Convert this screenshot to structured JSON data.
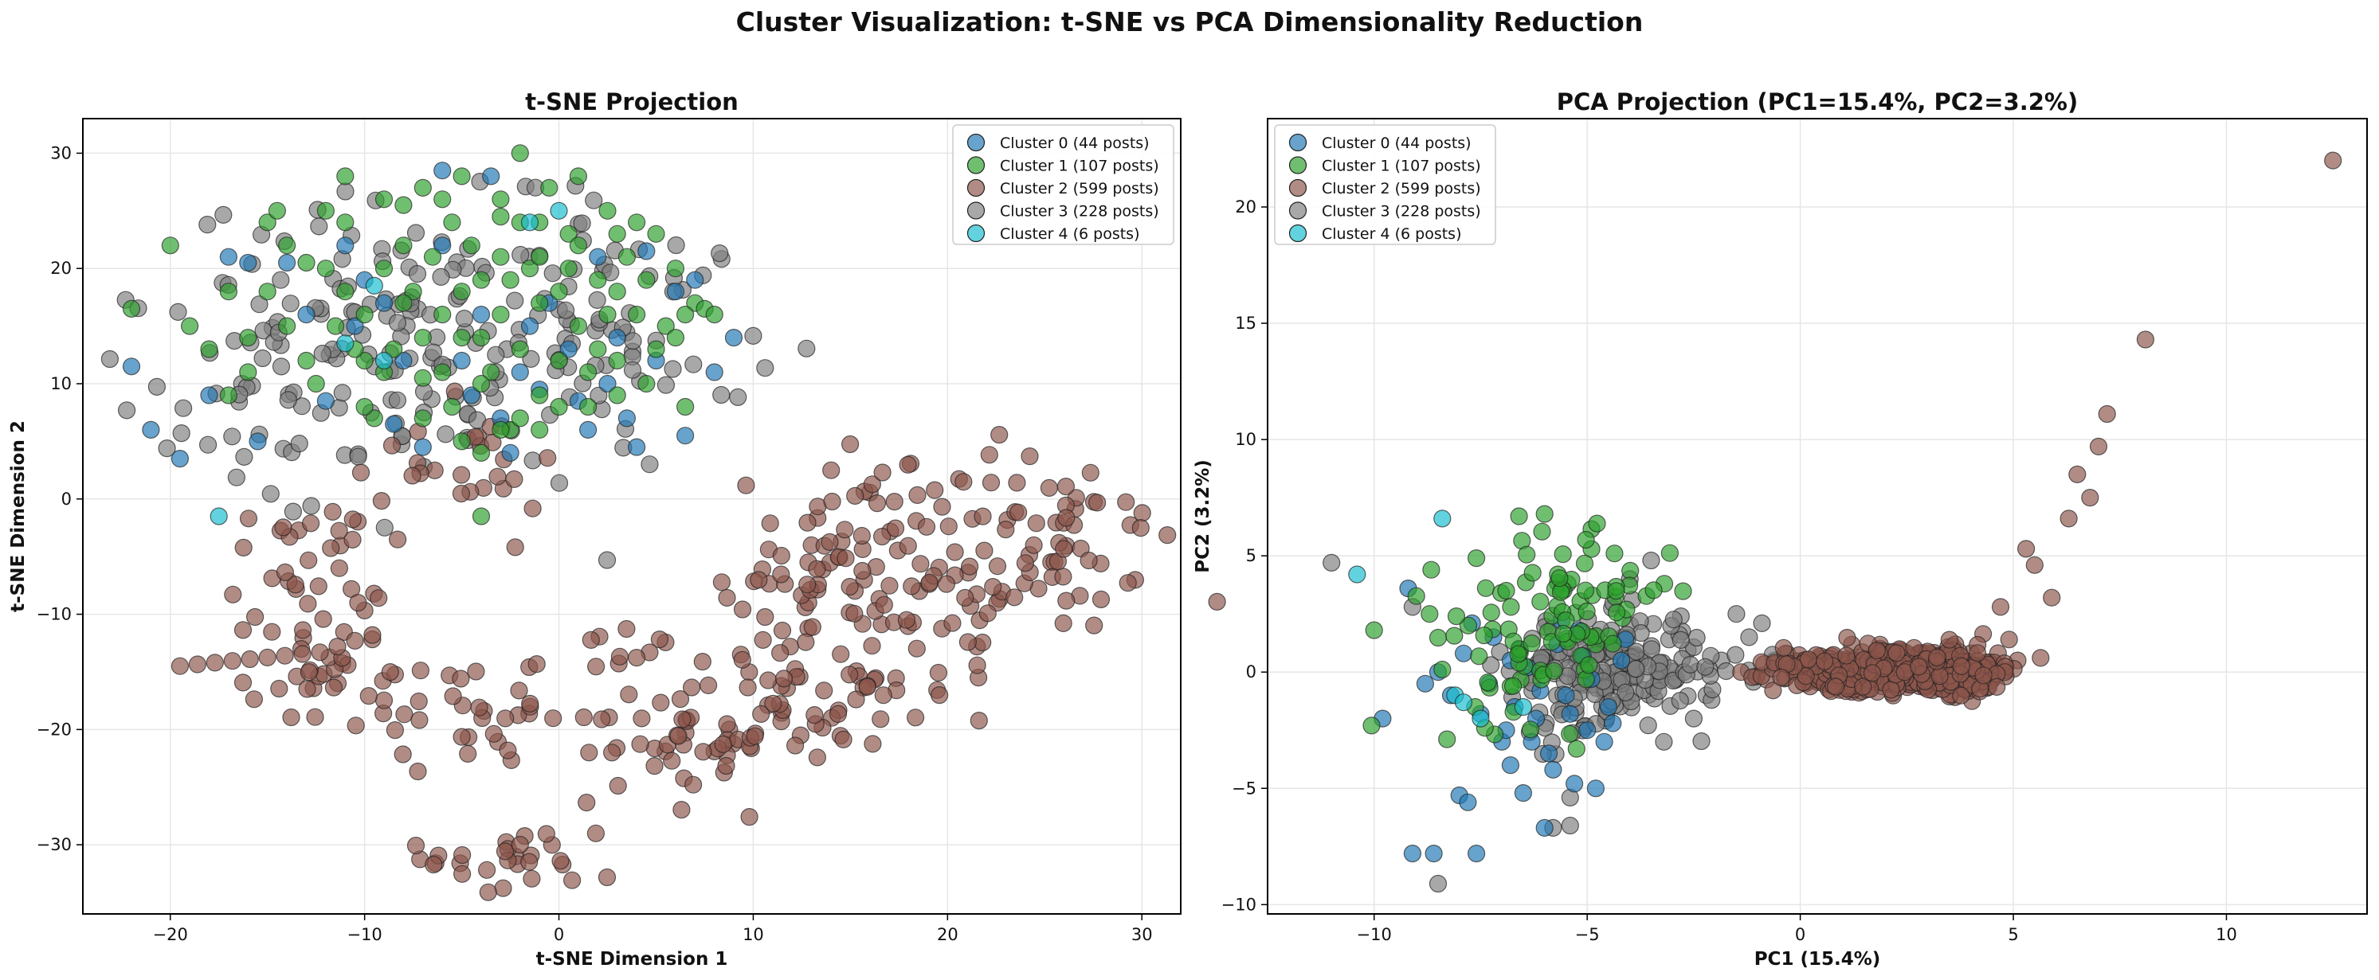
{
  "figure": {
    "title": "Cluster Visualization: t-SNE vs PCA Dimensionality Reduction"
  },
  "colors": {
    "cluster0": "#1f77b4",
    "cluster1": "#2ca02c",
    "cluster2": "#8c564b",
    "cluster3": "#7f7f7f",
    "cluster4": "#17becf",
    "grid": "#e6e6e6",
    "marker_edge": "#222222"
  },
  "chart_data": [
    {
      "type": "scatter",
      "title": "t-SNE Projection",
      "xlabel": "t-SNE Dimension 1",
      "ylabel": "t-SNE Dimension 2",
      "xlim": [
        -24.5,
        32
      ],
      "ylim": [
        -36,
        33
      ],
      "xticks": [
        -20,
        -10,
        0,
        10,
        20,
        30
      ],
      "yticks": [
        -30,
        -20,
        -10,
        0,
        10,
        20,
        30
      ],
      "grid": true,
      "legend_position": "top-right",
      "series": [
        {
          "name": "Cluster 0 (44 posts)",
          "color_key": "cluster0",
          "points": [
            [
              -22,
              11.5
            ],
            [
              -21,
              6
            ],
            [
              -19.5,
              3.5
            ],
            [
              -18,
              9
            ],
            [
              -17,
              21
            ],
            [
              -16,
              20.5
            ],
            [
              -15.5,
              5
            ],
            [
              -14,
              20.5
            ],
            [
              -13,
              16
            ],
            [
              -12,
              8.5
            ],
            [
              -11,
              22
            ],
            [
              -10.5,
              15
            ],
            [
              -10,
              19
            ],
            [
              -9,
              17
            ],
            [
              -8,
              12
            ],
            [
              -7,
              4.5
            ],
            [
              -6,
              28.5
            ],
            [
              -6,
              22
            ],
            [
              -5,
              12
            ],
            [
              -4.5,
              9
            ],
            [
              -4,
              16
            ],
            [
              -3.5,
              28
            ],
            [
              -3,
              7
            ],
            [
              -2.5,
              4
            ],
            [
              -2,
              11
            ],
            [
              -1.5,
              15
            ],
            [
              -1,
              9.5
            ],
            [
              -0.5,
              17
            ],
            [
              0.5,
              13
            ],
            [
              1,
              8.5
            ],
            [
              1.5,
              6
            ],
            [
              2,
              21
            ],
            [
              2.5,
              10
            ],
            [
              3,
              14
            ],
            [
              3.5,
              7
            ],
            [
              4,
              4.5
            ],
            [
              4.5,
              21.5
            ],
            [
              5,
              12
            ],
            [
              6,
              18
            ],
            [
              6.5,
              5.5
            ],
            [
              7,
              19
            ],
            [
              8,
              11
            ],
            [
              9,
              14
            ],
            [
              -8.5,
              6.5
            ]
          ]
        },
        {
          "name": "Cluster 1 (107 posts)",
          "color_key": "cluster1",
          "points": [
            [
              -22,
              16.5
            ],
            [
              -20,
              22
            ],
            [
              -19,
              15
            ],
            [
              -18,
              13
            ],
            [
              -17,
              18
            ],
            [
              -16,
              11
            ],
            [
              -15,
              24
            ],
            [
              -14.5,
              25
            ],
            [
              -14,
              15
            ],
            [
              -13,
              20.5
            ],
            [
              -12.5,
              10
            ],
            [
              -11.5,
              15
            ],
            [
              -11,
              24
            ],
            [
              -11,
              28
            ],
            [
              -10,
              12
            ],
            [
              -9.5,
              7
            ],
            [
              -9,
              20
            ],
            [
              -8.5,
              13
            ],
            [
              -8,
              25.5
            ],
            [
              -7.5,
              18
            ],
            [
              -7,
              10.5
            ],
            [
              -7,
              27
            ],
            [
              -6.5,
              21
            ],
            [
              -6,
              16
            ],
            [
              -5.5,
              8
            ],
            [
              -5,
              28
            ],
            [
              -5,
              14
            ],
            [
              -4.5,
              22
            ],
            [
              -4,
              4
            ],
            [
              -4,
              19
            ],
            [
              -3.5,
              11
            ],
            [
              -3,
              26
            ],
            [
              -3,
              16
            ],
            [
              -2.5,
              6
            ],
            [
              -2,
              30
            ],
            [
              -2,
              13
            ],
            [
              -1.5,
              20
            ],
            [
              -1,
              24
            ],
            [
              -1,
              9
            ],
            [
              -0.5,
              27
            ],
            [
              0,
              18
            ],
            [
              0,
              12
            ],
            [
              0.5,
              23
            ],
            [
              1,
              15
            ],
            [
              1.5,
              8
            ],
            [
              2,
              19
            ],
            [
              2.5,
              25
            ],
            [
              3,
              12
            ],
            [
              3.5,
              21
            ],
            [
              4,
              16
            ],
            [
              4.5,
              10
            ],
            [
              5,
              23
            ],
            [
              5.5,
              15
            ],
            [
              6,
              20
            ],
            [
              6.5,
              8
            ],
            [
              7,
              17
            ],
            [
              7.5,
              16.5
            ],
            [
              8,
              16
            ],
            [
              -12,
              20
            ],
            [
              -10,
              8
            ],
            [
              -8,
              17
            ],
            [
              -6,
              11
            ],
            [
              -5,
              5
            ],
            [
              -3,
              21
            ],
            [
              -1,
              6
            ],
            [
              1,
              22
            ],
            [
              3,
              18
            ],
            [
              5,
              13
            ],
            [
              -13,
              12
            ],
            [
              -15,
              18
            ],
            [
              -17,
              9
            ],
            [
              -9,
              26
            ],
            [
              -7,
              7
            ],
            [
              -4,
              14
            ],
            [
              -2,
              24
            ],
            [
              0,
              8
            ],
            [
              2,
              13
            ],
            [
              4,
              24
            ],
            [
              6,
              14
            ],
            [
              -11,
              18
            ],
            [
              -9,
              11
            ],
            [
              -6,
              26
            ],
            [
              -4,
              10
            ],
            [
              -1,
              17
            ],
            [
              1,
              28
            ],
            [
              3,
              9
            ],
            [
              -16,
              14
            ],
            [
              -12,
              25
            ],
            [
              -8,
              22
            ],
            [
              -5,
              18
            ],
            [
              -2,
              7
            ],
            [
              0.5,
              20
            ],
            [
              2.5,
              16
            ],
            [
              4.5,
              19
            ],
            [
              -14,
              22
            ],
            [
              -10,
              16
            ],
            [
              -7,
              14
            ],
            [
              -3,
              24.5
            ],
            [
              1.5,
              11
            ],
            [
              3,
              23
            ],
            [
              -4,
              -1.5
            ],
            [
              6.5,
              16
            ],
            [
              -1,
              21
            ],
            [
              -3,
              6
            ],
            [
              -5.5,
              24
            ],
            [
              -10.5,
              13
            ],
            [
              -2.5,
              19
            ]
          ]
        },
        {
          "name": "Cluster 2 (599 posts)",
          "color_key": "cluster2",
          "points": []
        },
        {
          "name": "Cluster 3 (228 posts)",
          "color_key": "cluster3",
          "points": []
        },
        {
          "name": "Cluster 4 (6 posts)",
          "color_key": "cluster4",
          "points": [
            [
              -17.5,
              -1.5
            ],
            [
              -11,
              13.5
            ],
            [
              -9.5,
              18.5
            ],
            [
              -1.5,
              24
            ],
            [
              0,
              25
            ],
            [
              -9,
              12
            ]
          ]
        }
      ]
    },
    {
      "type": "scatter",
      "title": "PCA Projection (PC1=15.4%, PC2=3.2%)",
      "xlabel": "PC1 (15.4%)",
      "ylabel": "PC2 (3.2%)",
      "xlim": [
        -12.5,
        13.3
      ],
      "ylim": [
        -10.4,
        23.8
      ],
      "xticks": [
        -10,
        -5,
        0,
        5,
        10
      ],
      "yticks": [
        -10,
        -5,
        0,
        5,
        10,
        15,
        20
      ],
      "grid": true,
      "legend_position": "top-left",
      "series": [
        {
          "name": "Cluster 0 (44 posts)",
          "color_key": "cluster0",
          "points": [
            [
              -9.8,
              -2
            ],
            [
              -9.1,
              -7.8
            ],
            [
              -8.6,
              -7.8
            ],
            [
              -8,
              -5.3
            ],
            [
              -7.8,
              -5.6
            ],
            [
              -7.6,
              -7.8
            ],
            [
              -6.8,
              -4
            ],
            [
              -6.5,
              -5.2
            ],
            [
              -6,
              -6.7
            ],
            [
              -5.3,
              -4.8
            ],
            [
              -4.8,
              -5
            ],
            [
              -7,
              -3
            ],
            [
              -6.2,
              -2
            ],
            [
              -5.5,
              -1
            ],
            [
              -6.7,
              -1.5
            ],
            [
              -7.3,
              -0.5
            ],
            [
              -8.2,
              -1
            ],
            [
              -5.9,
              -3.5
            ],
            [
              -5,
              -2.5
            ],
            [
              -4.5,
              -1.5
            ],
            [
              -7.9,
              0.8
            ],
            [
              -6.4,
              0.2
            ],
            [
              -5.2,
              1.8
            ],
            [
              -4.2,
              0.5
            ],
            [
              -8.5,
              0
            ],
            [
              -7.2,
              1.5
            ],
            [
              -6.1,
              -0.8
            ],
            [
              -5.6,
              2.2
            ],
            [
              -4.9,
              -0.3
            ],
            [
              -6.9,
              -2.5
            ],
            [
              -7.5,
              -1.8
            ],
            [
              -8.8,
              -0.5
            ],
            [
              -5.8,
              -4.2
            ],
            [
              -4.6,
              -3
            ],
            [
              -6.6,
              1
            ],
            [
              -5.4,
              -1.8
            ],
            [
              -4.1,
              1.4
            ],
            [
              -7.7,
              2.1
            ],
            [
              -6.3,
              -3
            ],
            [
              -5.1,
              0.7
            ],
            [
              -9.2,
              3.6
            ],
            [
              -4.4,
              -2.2
            ],
            [
              -6.8,
              0.5
            ],
            [
              -5.7,
              1.2
            ]
          ]
        },
        {
          "name": "Cluster 1 (107 posts)",
          "color_key": "cluster1",
          "points": []
        },
        {
          "name": "Cluster 2 (599 posts)",
          "color_key": "cluster2",
          "points": [
            [
              12.5,
              22
            ],
            [
              8.1,
              14.3
            ],
            [
              7.2,
              11.1
            ],
            [
              7,
              9.7
            ],
            [
              6.8,
              7.5
            ],
            [
              6.5,
              8.5
            ],
            [
              6.3,
              6.6
            ],
            [
              5.9,
              3.2
            ],
            [
              5.5,
              4.6
            ],
            [
              5.3,
              5.3
            ],
            [
              4.9,
              1.4
            ],
            [
              4.7,
              2.8
            ],
            [
              5.1,
              0.5
            ]
          ]
        },
        {
          "name": "Cluster 3 (228 posts)",
          "color_key": "cluster3",
          "points": [
            [
              -11,
              4.7
            ],
            [
              -8.5,
              -9.1
            ],
            [
              -5.8,
              -6.7
            ],
            [
              -5.4,
              -6.6
            ],
            [
              -5.4,
              -5.4
            ],
            [
              -3.2,
              -3
            ],
            [
              -3.5,
              4.8
            ],
            [
              -4,
              4
            ],
            [
              -2.8,
              2.4
            ],
            [
              -1.5,
              2.5
            ],
            [
              -0.9,
              2.1
            ],
            [
              -9.1,
              2.8
            ],
            [
              -1.2,
              1.5
            ],
            [
              -0.6,
              0.5
            ],
            [
              -2.2,
              -1
            ],
            [
              -2.5,
              -2
            ]
          ]
        },
        {
          "name": "Cluster 4 (6 posts)",
          "color_key": "cluster4",
          "points": [
            [
              -10.4,
              4.2
            ],
            [
              -8.4,
              6.6
            ],
            [
              -8.1,
              -1
            ],
            [
              -7.5,
              -2
            ],
            [
              -7.9,
              -1.3
            ],
            [
              -6.5,
              -1.5
            ]
          ]
        }
      ]
    }
  ]
}
